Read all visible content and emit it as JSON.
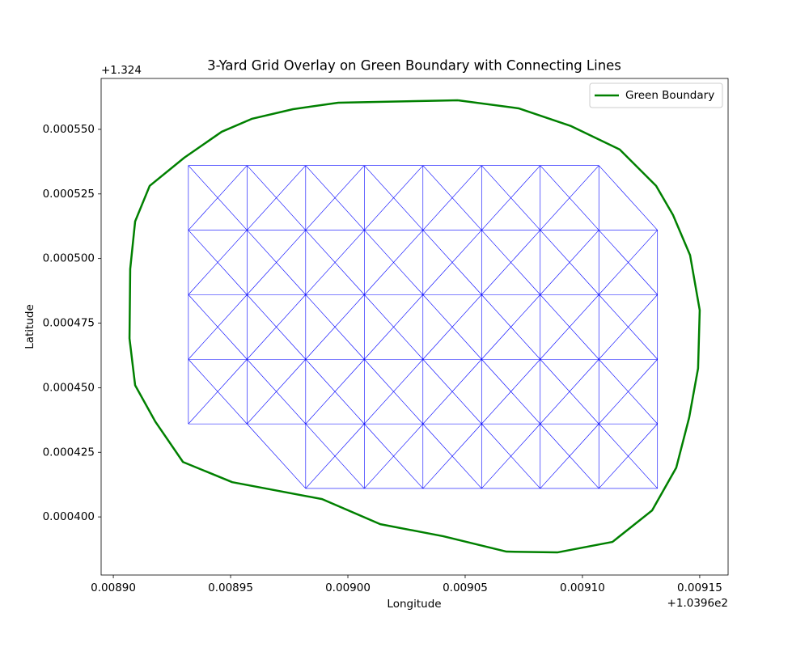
{
  "chart_data": {
    "type": "line",
    "title": "3-Yard Grid Overlay on Green Boundary with Connecting Lines",
    "x_label": "Longitude",
    "y_label": "Latitude",
    "x_offset_label": "+1.0396e2",
    "y_offset_label": "+1.324",
    "xlim": [
      0.0088948,
      0.0091621
    ],
    "ylim": [
      0.0003775,
      0.0005697
    ],
    "xticks": [
      {
        "value": 0.0089,
        "label": "0.00890"
      },
      {
        "value": 0.00895,
        "label": "0.00895"
      },
      {
        "value": 0.009,
        "label": "0.00900"
      },
      {
        "value": 0.00905,
        "label": "0.00905"
      },
      {
        "value": 0.0091,
        "label": "0.00910"
      },
      {
        "value": 0.00915,
        "label": "0.00915"
      }
    ],
    "yticks": [
      {
        "value": 0.0004,
        "label": "0.000400"
      },
      {
        "value": 0.000425,
        "label": "0.000425"
      },
      {
        "value": 0.00045,
        "label": "0.000450"
      },
      {
        "value": 0.000475,
        "label": "0.000475"
      },
      {
        "value": 0.0005,
        "label": "0.000500"
      },
      {
        "value": 0.000525,
        "label": "0.000525"
      },
      {
        "value": 0.00055,
        "label": "0.000550"
      }
    ],
    "legend": "upper right",
    "series": [
      {
        "name": "Green Boundary",
        "color": "#008000",
        "draw": "path",
        "x": [
          0.0090469,
          0.0090728,
          0.0090952,
          0.0091159,
          0.0091314,
          0.0091386,
          0.0091459,
          0.00915,
          0.0091493,
          0.0091455,
          0.00914,
          0.0091297,
          0.0091128,
          0.0090893,
          0.0090676,
          0.0090407,
          0.0090138,
          0.008989,
          0.0089507,
          0.0089297,
          0.0089179,
          0.0089093,
          0.0089069,
          0.0089072,
          0.0089093,
          0.0089155,
          0.0089303,
          0.0089462,
          0.008959,
          0.0089766,
          0.0089959,
          0.0090469
        ],
        "values": [
          0.00056125,
          0.00055813,
          0.00055125,
          0.00054219,
          0.00052813,
          0.00051688,
          0.00050125,
          0.00048,
          0.0004575,
          0.00043844,
          0.00041906,
          0.0004025,
          0.00039031,
          0.00038625,
          0.00038656,
          0.0003925,
          0.00039719,
          0.00040688,
          0.00041344,
          0.00042125,
          0.00043688,
          0.00045094,
          0.00046906,
          0.00049594,
          0.00051438,
          0.00052813,
          0.00053906,
          0.00054906,
          0.00055406,
          0.00055781,
          0.00056031,
          0.00056125
        ]
      },
      {
        "color": "#0000ff",
        "draw": "neighbor-mesh",
        "x": [
          0.008932,
          0.008957,
          0.008982,
          0.009007,
          0.009032,
          0.009057,
          0.009082,
          0.009107,
          0.008932,
          0.008957,
          0.008982,
          0.009007,
          0.009032,
          0.009057,
          0.009082,
          0.009107,
          0.009132,
          0.008932,
          0.008957,
          0.008982,
          0.009007,
          0.009032,
          0.009057,
          0.009082,
          0.009107,
          0.009132,
          0.008932,
          0.008957,
          0.008982,
          0.009007,
          0.009032,
          0.009057,
          0.009082,
          0.009107,
          0.009132,
          0.008932,
          0.008957,
          0.008982,
          0.009007,
          0.009032,
          0.009057,
          0.009082,
          0.009107,
          0.009132,
          0.008982,
          0.009007,
          0.009032,
          0.009057,
          0.009082,
          0.009107,
          0.009132
        ],
        "values": [
          0.000536,
          0.000536,
          0.000536,
          0.000536,
          0.000536,
          0.000536,
          0.000536,
          0.000536,
          0.000511,
          0.000511,
          0.000511,
          0.000511,
          0.000511,
          0.000511,
          0.000511,
          0.000511,
          0.000511,
          0.000486,
          0.000486,
          0.000486,
          0.000486,
          0.000486,
          0.000486,
          0.000486,
          0.000486,
          0.000486,
          0.000461,
          0.000461,
          0.000461,
          0.000461,
          0.000461,
          0.000461,
          0.000461,
          0.000461,
          0.000461,
          0.000436,
          0.000436,
          0.000436,
          0.000436,
          0.000436,
          0.000436,
          0.000436,
          0.000436,
          0.000436,
          0.000411,
          0.000411,
          0.000411,
          0.000411,
          0.000411,
          0.000411,
          0.000411
        ]
      }
    ]
  }
}
